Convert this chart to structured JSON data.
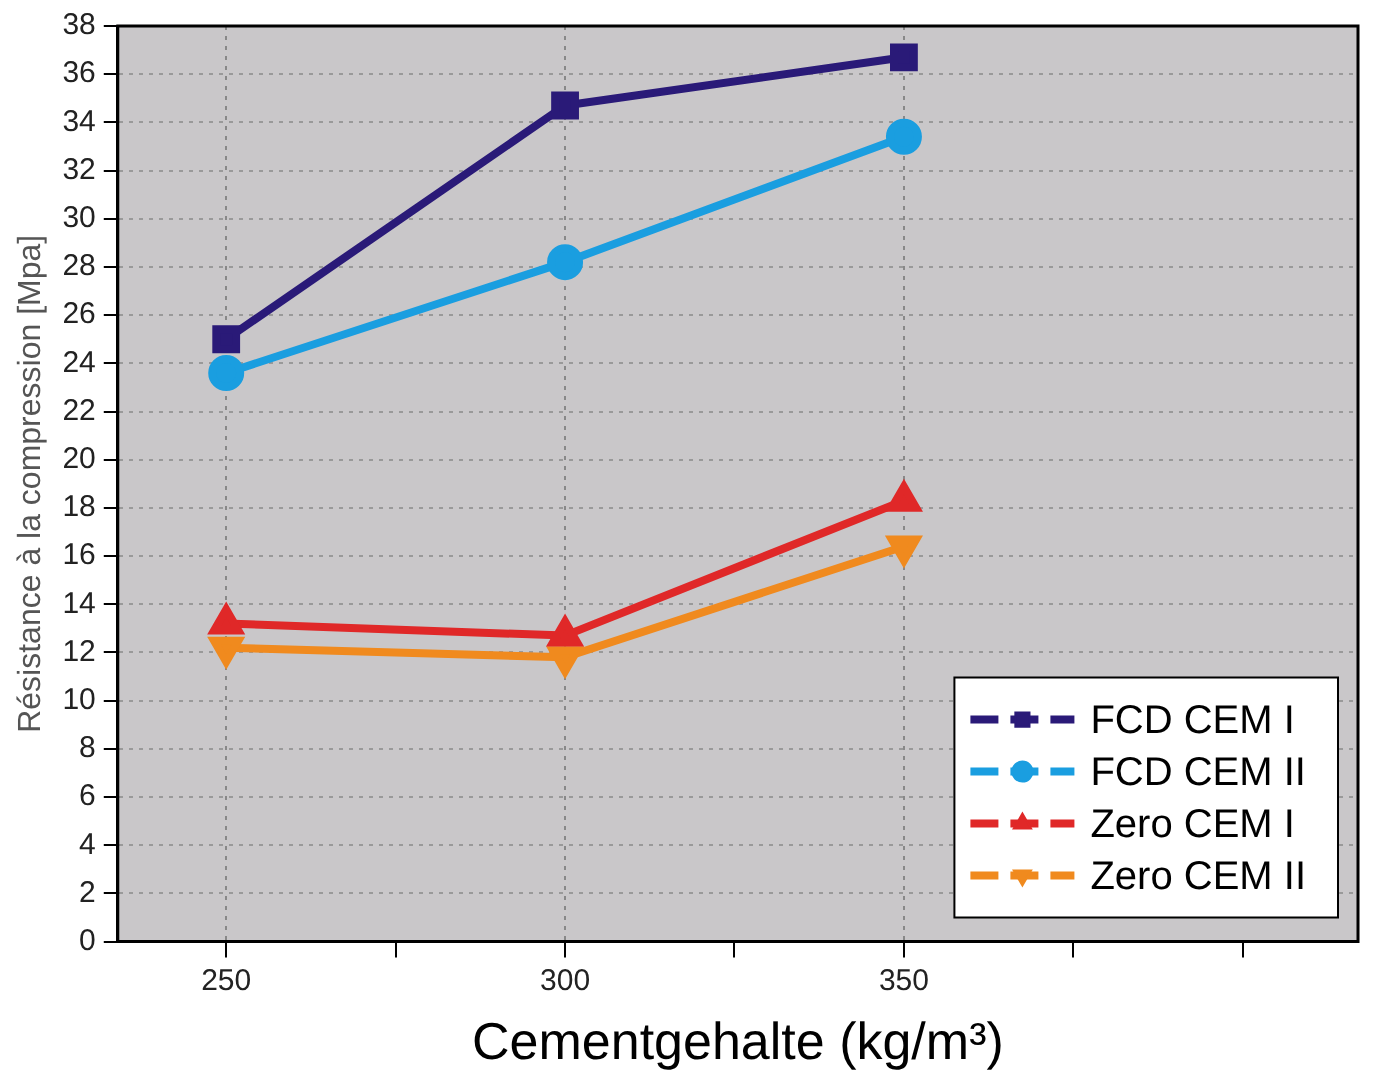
{
  "chart_data": {
    "type": "line",
    "xlabel": "Cementgehalte (kg/m³)",
    "ylabel": "Résistance à la compression [Mpa]",
    "x": [
      250,
      300,
      350
    ],
    "series": [
      {
        "name": "FCD CEM I",
        "color": "#2a1a78",
        "marker": "square",
        "values": [
          25,
          34.7,
          36.7
        ]
      },
      {
        "name": "FCD CEM II",
        "color": "#1a9ee0",
        "marker": "circle",
        "values": [
          23.6,
          28.2,
          33.4
        ]
      },
      {
        "name": "Zero CEM I",
        "color": "#e02828",
        "marker": "triangle",
        "values": [
          13.2,
          12.7,
          18.3
        ]
      },
      {
        "name": "Zero CEM II",
        "color": "#f08a1e",
        "marker": "triangle-down",
        "values": [
          12.2,
          11.8,
          16.4
        ]
      }
    ],
    "xlim": [
      234,
      417
    ],
    "xticks": [
      250,
      {
        "value": 275,
        "label": null
      },
      300,
      {
        "value": 325,
        "label": null
      },
      350,
      {
        "value": 375,
        "label": null
      },
      {
        "value": 400,
        "label": null
      }
    ],
    "ylim": [
      0,
      38
    ],
    "yticks": [
      0,
      2,
      4,
      6,
      8,
      10,
      12,
      14,
      16,
      18,
      20,
      22,
      24,
      26,
      28,
      30,
      32,
      34,
      36,
      38
    ],
    "grid": true,
    "legend": "bottom right",
    "line_style": "solid"
  }
}
